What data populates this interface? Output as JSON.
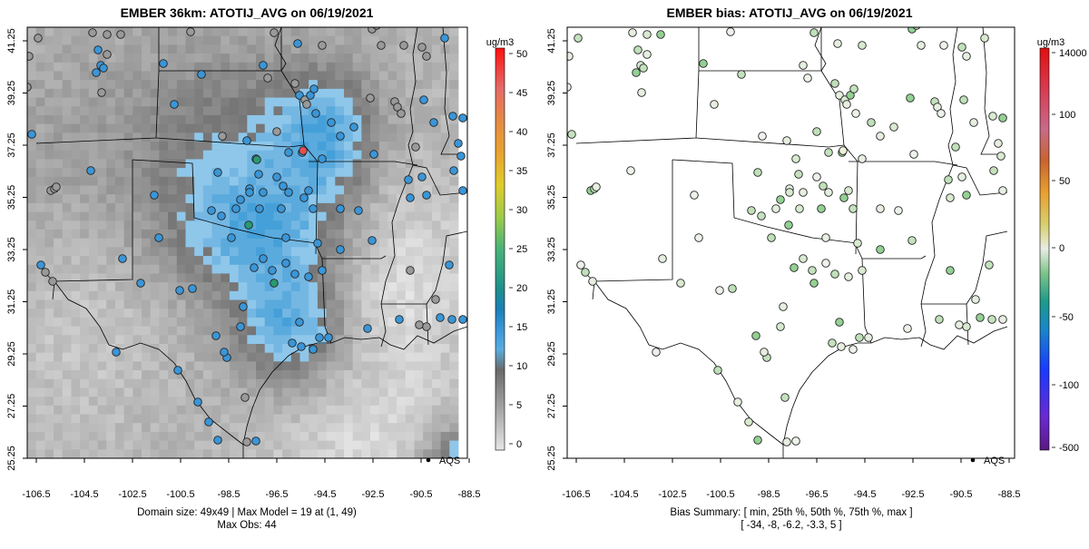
{
  "left_panel": {
    "title": "EMBER 36km: ATOTIJ_AVG on 06/19/2021",
    "units": "ug/m3",
    "colorbar_labels": [
      "0",
      "5",
      "10",
      "15",
      "20",
      "25",
      "30",
      "35",
      "40",
      "45",
      "50"
    ],
    "legend_label": "AQS",
    "caption_line1": "Domain size: 49x49 | Max Model = 19 at (1, 49)",
    "caption_line2": "Max Obs: 44"
  },
  "right_panel": {
    "title": "EMBER bias: ATOTIJ_AVG on 06/19/2021",
    "units": "ug/m3",
    "colorbar_labels": [
      "-500",
      "-100",
      "-50",
      "0",
      "50",
      "100",
      "14000"
    ],
    "legend_label": "AQS",
    "caption_line1": "Bias Summary: [ min, 25th %, 50th %, 75th %, max ]",
    "caption_line2": "[ -34,   -8,   -6.2,   -3.3,   5 ]"
  },
  "axes": {
    "x_ticks": [
      "-106.5",
      "-104.5",
      "-102.5",
      "-100.5",
      "-98.5",
      "-96.5",
      "-94.5",
      "-92.5",
      "-90.5",
      "-88.5"
    ],
    "y_ticks": [
      "41.25",
      "39.25",
      "37.25",
      "35.25",
      "33.25",
      "31.25",
      "29.25",
      "27.25",
      "25.25"
    ]
  },
  "colors": {
    "obs_gray": "#9a9a9a",
    "obs_blue": "#3a96d8",
    "obs_green": "#2a9a70",
    "bias_light": "#e6efe0",
    "bias_green": "#93d193"
  },
  "chart_data": [
    {
      "type": "heatmap",
      "title": "EMBER 36km: ATOTIJ_AVG on 06/19/2021",
      "x_range": [
        -107.5,
        -88.0
      ],
      "y_range": [
        25.25,
        41.5
      ],
      "colorbar_range": [
        0,
        50
      ],
      "colorbar_units": "ug/m3",
      "legend": [
        "AQS"
      ],
      "grid": "off"
    },
    {
      "type": "scatter",
      "title": "EMBER bias: ATOTIJ_AVG on 06/19/2021",
      "x_range": [
        -107.5,
        -88.0
      ],
      "y_range": [
        25.25,
        41.5
      ],
      "colorbar_ticks": [
        "-500",
        "-100",
        "-50",
        "0",
        "50",
        "100",
        "14000"
      ],
      "colorbar_units": "ug/m3",
      "bias_summary": {
        "min": -34,
        "p25": -8,
        "p50": -6.2,
        "p75": -3.3,
        "max": 5
      },
      "legend": [
        "AQS"
      ],
      "grid": "off"
    }
  ]
}
